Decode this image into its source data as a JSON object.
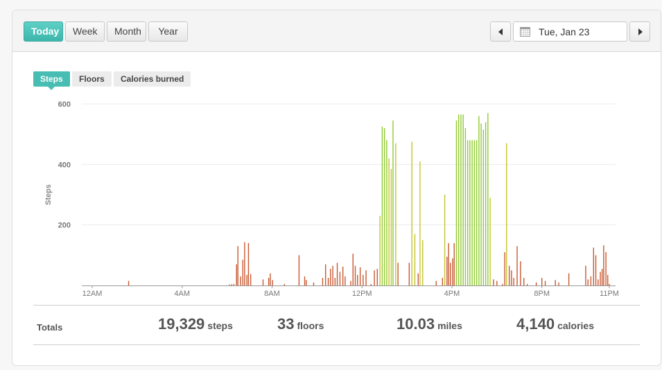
{
  "toolbar": {
    "periods": [
      {
        "label": "Today",
        "active": true
      },
      {
        "label": "Week",
        "active": false
      },
      {
        "label": "Month",
        "active": false
      },
      {
        "label": "Year",
        "active": false
      }
    ],
    "date": "Tue, Jan 23",
    "prev_icon": "caret-left-icon",
    "next_icon": "caret-right-icon",
    "calendar_icon": "calendar-icon"
  },
  "metric_tabs": [
    {
      "label": "Steps",
      "active": true
    },
    {
      "label": "Floors",
      "active": false
    },
    {
      "label": "Calories burned",
      "active": false
    }
  ],
  "chart_data": {
    "type": "bar",
    "ylabel": "Steps",
    "ylim": [
      0,
      600
    ],
    "yticks": [
      200,
      400,
      600
    ],
    "xlim_hours": [
      0,
      23
    ],
    "xticks": [
      {
        "hour": 0,
        "label": "12AM"
      },
      {
        "hour": 4,
        "label": "4AM"
      },
      {
        "hour": 8,
        "label": "8AM"
      },
      {
        "hour": 12,
        "label": "12PM"
      },
      {
        "hour": 16,
        "label": "4PM"
      },
      {
        "hour": 20,
        "label": "8PM"
      },
      {
        "hour": 23,
        "label": "11PM"
      }
    ],
    "grid": true,
    "colors": {
      "low": "#c8572e",
      "mid": "#c4c42a",
      "high": "#8fca2f"
    },
    "series": [
      {
        "values": [
          {
            "t": 1.62,
            "v": 15
          },
          {
            "t": 6.1,
            "v": 3
          },
          {
            "t": 6.2,
            "v": 4
          },
          {
            "t": 6.3,
            "v": 5
          },
          {
            "t": 6.42,
            "v": 70
          },
          {
            "t": 6.48,
            "v": 130
          },
          {
            "t": 6.6,
            "v": 30
          },
          {
            "t": 6.7,
            "v": 85
          },
          {
            "t": 6.78,
            "v": 143
          },
          {
            "t": 6.88,
            "v": 35
          },
          {
            "t": 6.95,
            "v": 140
          },
          {
            "t": 7.05,
            "v": 38
          },
          {
            "t": 7.6,
            "v": 20
          },
          {
            "t": 7.85,
            "v": 25
          },
          {
            "t": 7.92,
            "v": 40
          },
          {
            "t": 8.02,
            "v": 18
          },
          {
            "t": 8.55,
            "v": 5
          },
          {
            "t": 9.2,
            "v": 100
          },
          {
            "t": 9.45,
            "v": 30
          },
          {
            "t": 9.52,
            "v": 18
          },
          {
            "t": 9.85,
            "v": 10
          },
          {
            "t": 10.25,
            "v": 25
          },
          {
            "t": 10.38,
            "v": 70
          },
          {
            "t": 10.5,
            "v": 25
          },
          {
            "t": 10.6,
            "v": 55
          },
          {
            "t": 10.7,
            "v": 65
          },
          {
            "t": 10.8,
            "v": 25
          },
          {
            "t": 10.9,
            "v": 75
          },
          {
            "t": 11.02,
            "v": 45
          },
          {
            "t": 11.15,
            "v": 62
          },
          {
            "t": 11.25,
            "v": 30
          },
          {
            "t": 11.5,
            "v": 15
          },
          {
            "t": 11.6,
            "v": 105
          },
          {
            "t": 11.7,
            "v": 65
          },
          {
            "t": 11.8,
            "v": 35
          },
          {
            "t": 11.92,
            "v": 60
          },
          {
            "t": 12.05,
            "v": 35
          },
          {
            "t": 12.18,
            "v": 50
          },
          {
            "t": 12.4,
            "v": 5
          },
          {
            "t": 12.55,
            "v": 50
          },
          {
            "t": 12.68,
            "v": 55
          },
          {
            "t": 12.8,
            "v": 230
          },
          {
            "t": 12.9,
            "v": 525
          },
          {
            "t": 13.0,
            "v": 520
          },
          {
            "t": 13.1,
            "v": 480
          },
          {
            "t": 13.2,
            "v": 420
          },
          {
            "t": 13.3,
            "v": 385
          },
          {
            "t": 13.38,
            "v": 545
          },
          {
            "t": 13.5,
            "v": 470
          },
          {
            "t": 13.6,
            "v": 75
          },
          {
            "t": 14.1,
            "v": 75
          },
          {
            "t": 14.22,
            "v": 475
          },
          {
            "t": 14.35,
            "v": 170
          },
          {
            "t": 14.5,
            "v": 40
          },
          {
            "t": 14.58,
            "v": 410
          },
          {
            "t": 14.7,
            "v": 150
          },
          {
            "t": 15.3,
            "v": 15
          },
          {
            "t": 15.58,
            "v": 25
          },
          {
            "t": 15.68,
            "v": 300
          },
          {
            "t": 15.78,
            "v": 95
          },
          {
            "t": 15.85,
            "v": 140
          },
          {
            "t": 15.93,
            "v": 75
          },
          {
            "t": 16.03,
            "v": 90
          },
          {
            "t": 16.1,
            "v": 140
          },
          {
            "t": 16.2,
            "v": 545
          },
          {
            "t": 16.3,
            "v": 565
          },
          {
            "t": 16.4,
            "v": 565
          },
          {
            "t": 16.5,
            "v": 565
          },
          {
            "t": 16.6,
            "v": 520
          },
          {
            "t": 16.7,
            "v": 480
          },
          {
            "t": 16.8,
            "v": 480
          },
          {
            "t": 16.9,
            "v": 480
          },
          {
            "t": 17.0,
            "v": 480
          },
          {
            "t": 17.1,
            "v": 480
          },
          {
            "t": 17.2,
            "v": 560
          },
          {
            "t": 17.3,
            "v": 535
          },
          {
            "t": 17.4,
            "v": 515
          },
          {
            "t": 17.5,
            "v": 540
          },
          {
            "t": 17.6,
            "v": 570
          },
          {
            "t": 17.7,
            "v": 290
          },
          {
            "t": 17.85,
            "v": 20
          },
          {
            "t": 18.0,
            "v": 15
          },
          {
            "t": 18.25,
            "v": 5
          },
          {
            "t": 18.35,
            "v": 110
          },
          {
            "t": 18.43,
            "v": 470
          },
          {
            "t": 18.55,
            "v": 65
          },
          {
            "t": 18.65,
            "v": 50
          },
          {
            "t": 18.75,
            "v": 25
          },
          {
            "t": 18.9,
            "v": 130
          },
          {
            "t": 19.05,
            "v": 80
          },
          {
            "t": 19.2,
            "v": 25
          },
          {
            "t": 19.35,
            "v": 5
          },
          {
            "t": 19.75,
            "v": 10
          },
          {
            "t": 20.0,
            "v": 25
          },
          {
            "t": 20.15,
            "v": 15
          },
          {
            "t": 20.6,
            "v": 18
          },
          {
            "t": 20.75,
            "v": 10
          },
          {
            "t": 21.2,
            "v": 40
          },
          {
            "t": 21.95,
            "v": 65
          },
          {
            "t": 22.05,
            "v": 20
          },
          {
            "t": 22.18,
            "v": 30
          },
          {
            "t": 22.3,
            "v": 125
          },
          {
            "t": 22.4,
            "v": 100
          },
          {
            "t": 22.5,
            "v": 20
          },
          {
            "t": 22.6,
            "v": 45
          },
          {
            "t": 22.68,
            "v": 55
          },
          {
            "t": 22.75,
            "v": 133
          },
          {
            "t": 22.85,
            "v": 110
          },
          {
            "t": 22.93,
            "v": 35
          },
          {
            "t": 23.0,
            "v": 5
          }
        ]
      }
    ]
  },
  "totals": {
    "label": "Totals",
    "steps": {
      "value": "19,329",
      "unit": "steps"
    },
    "floors": {
      "value": "33",
      "unit": "floors"
    },
    "miles": {
      "value": "10.03",
      "unit": "miles"
    },
    "calories": {
      "value": "4,140",
      "unit": "calories"
    }
  }
}
